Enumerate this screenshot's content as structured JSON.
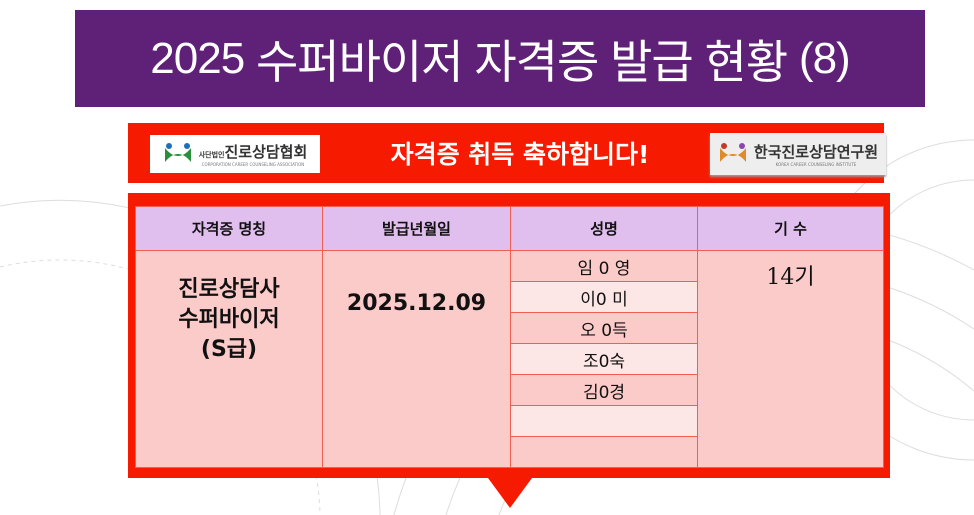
{
  "header": {
    "year": "2025",
    "title": "수퍼바이저 자격증 발급 현황",
    "number": "(8)"
  },
  "banner": {
    "text": "자격증 취득 축하합니다!",
    "logo_left": {
      "prefix": "사단법인",
      "name": "진로상담협회",
      "sub": "CORPORATION CAREER COUNSELING ASSOCIATION"
    },
    "logo_right": {
      "name": "한국진로상담연구원",
      "sub": "KOREA CAREER COUNSELING INSTITUTE"
    }
  },
  "table": {
    "headers": [
      "자격증 명칭",
      "발급년월일",
      "성명",
      "기 수"
    ],
    "certificate": [
      "진로상담사",
      "수퍼바이저",
      "(S급)"
    ],
    "date": "2025.12.09",
    "names": [
      "임 0 영",
      "이0 미",
      "오 0득",
      "조0숙",
      "김0경",
      "",
      ""
    ],
    "generation": "14기"
  },
  "colors": {
    "title_bg": "#5f2078",
    "banner_red": "#f61b00",
    "header_bg": "#e0bfee",
    "cell_bg": "#fbcbca"
  }
}
